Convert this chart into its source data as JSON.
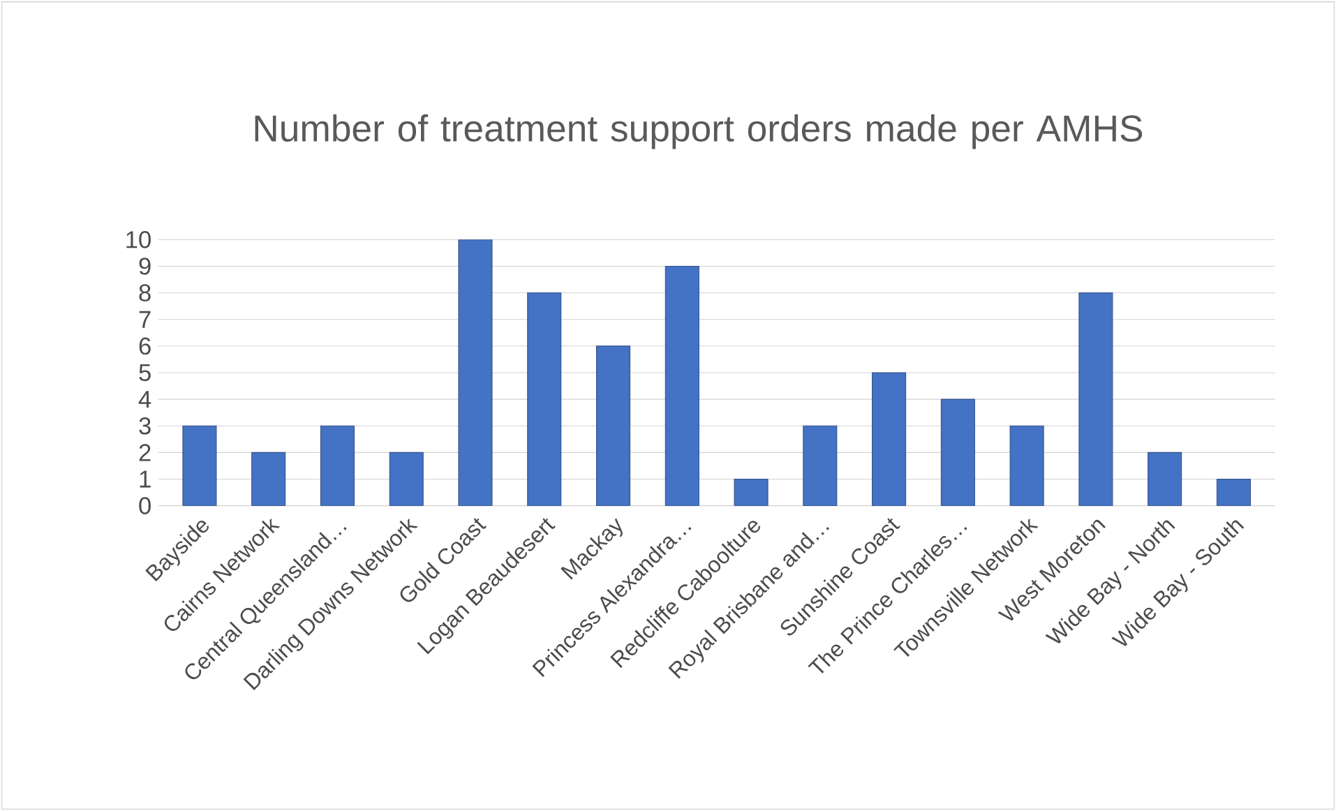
{
  "chart_data": {
    "type": "bar",
    "title": "Number of treatment support orders made per AMHS",
    "categories": [
      "Bayside",
      "Cairns Network",
      "Central Queensland…",
      "Darling Downs Network",
      "Gold Coast",
      "Logan Beaudesert",
      "Mackay",
      "Princess Alexandra…",
      "Redcliffe Caboolture",
      "Royal Brisbane and…",
      "Sunshine Coast",
      "The Prince Charles…",
      "Townsville Network",
      "West Moreton",
      "Wide Bay - North",
      "Wide Bay - South"
    ],
    "values": [
      3,
      2,
      3,
      2,
      10,
      8,
      6,
      9,
      1,
      3,
      5,
      4,
      3,
      8,
      2,
      1
    ],
    "color": "#4472c4",
    "ylim": [
      0,
      10
    ],
    "yticks": [
      0,
      1,
      2,
      3,
      4,
      5,
      6,
      7,
      8,
      9,
      10
    ],
    "grid": "y"
  }
}
